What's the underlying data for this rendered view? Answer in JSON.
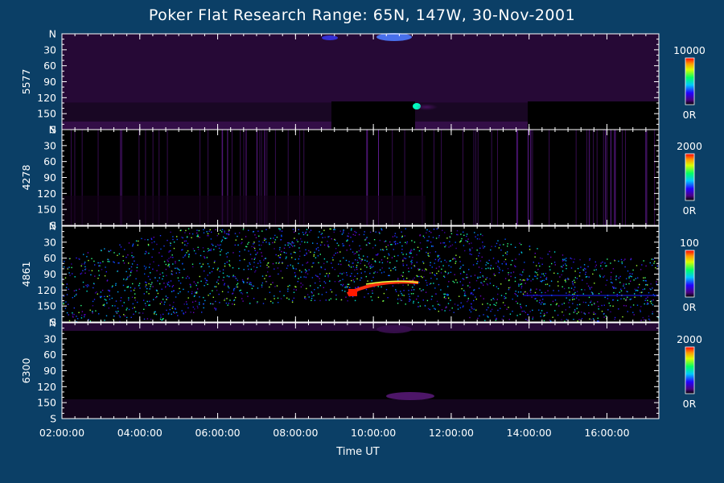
{
  "chart_data": {
    "type": "heatmap",
    "title": "Poker Flat Research Range: 65N, 147W, 30-Nov-2001",
    "xlabel": "Time UT",
    "x_ticks": [
      "02:00:00",
      "04:00:00",
      "06:00:00",
      "08:00:00",
      "10:00:00",
      "12:00:00",
      "14:00:00",
      "16:00:00"
    ],
    "x_range": [
      "02:00:00",
      "17:20:00"
    ],
    "y_ticks": [
      "N",
      "30",
      "60",
      "90",
      "120",
      "150",
      "S"
    ],
    "y_range": [
      0,
      180
    ],
    "panels": [
      {
        "channel": "5577",
        "colorbar_max": "10000",
        "colorbar_min": "0R"
      },
      {
        "channel": "4278",
        "colorbar_max": "2000",
        "colorbar_min": "0R"
      },
      {
        "channel": "4861",
        "colorbar_max": "100",
        "colorbar_min": "0R"
      },
      {
        "channel": "6300",
        "colorbar_max": "2000",
        "colorbar_min": "0R"
      }
    ]
  },
  "colors": {
    "background": "#0b3f66",
    "text": "#ffffff",
    "colormap": [
      "#000000",
      "#3a0050",
      "#4b00c8",
      "#0000ff",
      "#00c8ff",
      "#00ff66",
      "#c8ff00",
      "#ff9600",
      "#ff0000"
    ]
  }
}
